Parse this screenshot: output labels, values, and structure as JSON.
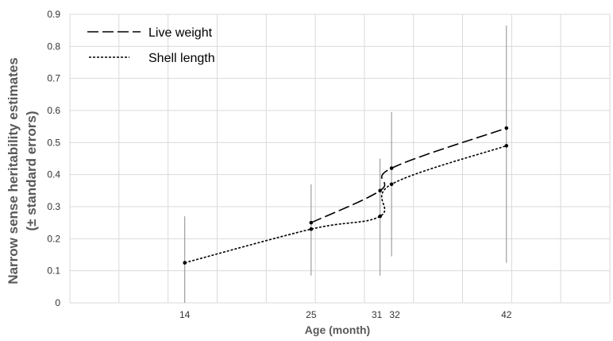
{
  "chart_data": {
    "type": "line",
    "xlabel": "Age (month)",
    "ylabel": "Narrow sense heritability estimates",
    "ylabel2": "(± standard errors)",
    "x": [
      14,
      25,
      31,
      32,
      42
    ],
    "xlim": [
      4,
      51
    ],
    "ylim": [
      0,
      0.9
    ],
    "yticks": [
      0,
      0.1,
      0.2,
      0.3,
      0.4,
      0.5,
      0.6,
      0.7,
      0.8,
      0.9
    ],
    "ytick_labels": [
      "0",
      "0.1",
      "0.2",
      "0.3",
      "0.4",
      "0.5",
      "0.6",
      "0.7",
      "0.8",
      "0.9"
    ],
    "xtick_labels": [
      "14",
      "25",
      "31",
      "32",
      "42"
    ],
    "grid": true,
    "legend_position": "top-left",
    "series": [
      {
        "name": "Live weight",
        "style": "long-dash",
        "x": [
          25,
          31,
          32,
          42
        ],
        "values": [
          0.25,
          0.35,
          0.42,
          0.545
        ],
        "err_low": [
          0.085,
          0.085,
          0.145,
          0.125
        ],
        "err_high": [
          0.37,
          0.45,
          0.595,
          0.865
        ]
      },
      {
        "name": "Shell length",
        "style": "short-dash",
        "x": [
          14,
          25,
          31,
          32,
          42
        ],
        "values": [
          0.125,
          0.23,
          0.27,
          0.37,
          0.49
        ],
        "err_low": [
          0.0,
          null,
          null,
          null,
          null
        ],
        "err_high": [
          0.27,
          null,
          null,
          null,
          null
        ]
      }
    ],
    "colors": {
      "line": "#000000",
      "grid": "#d9d9d9",
      "error_bar": "#8c8c8c",
      "axis_title": "#595959"
    }
  }
}
